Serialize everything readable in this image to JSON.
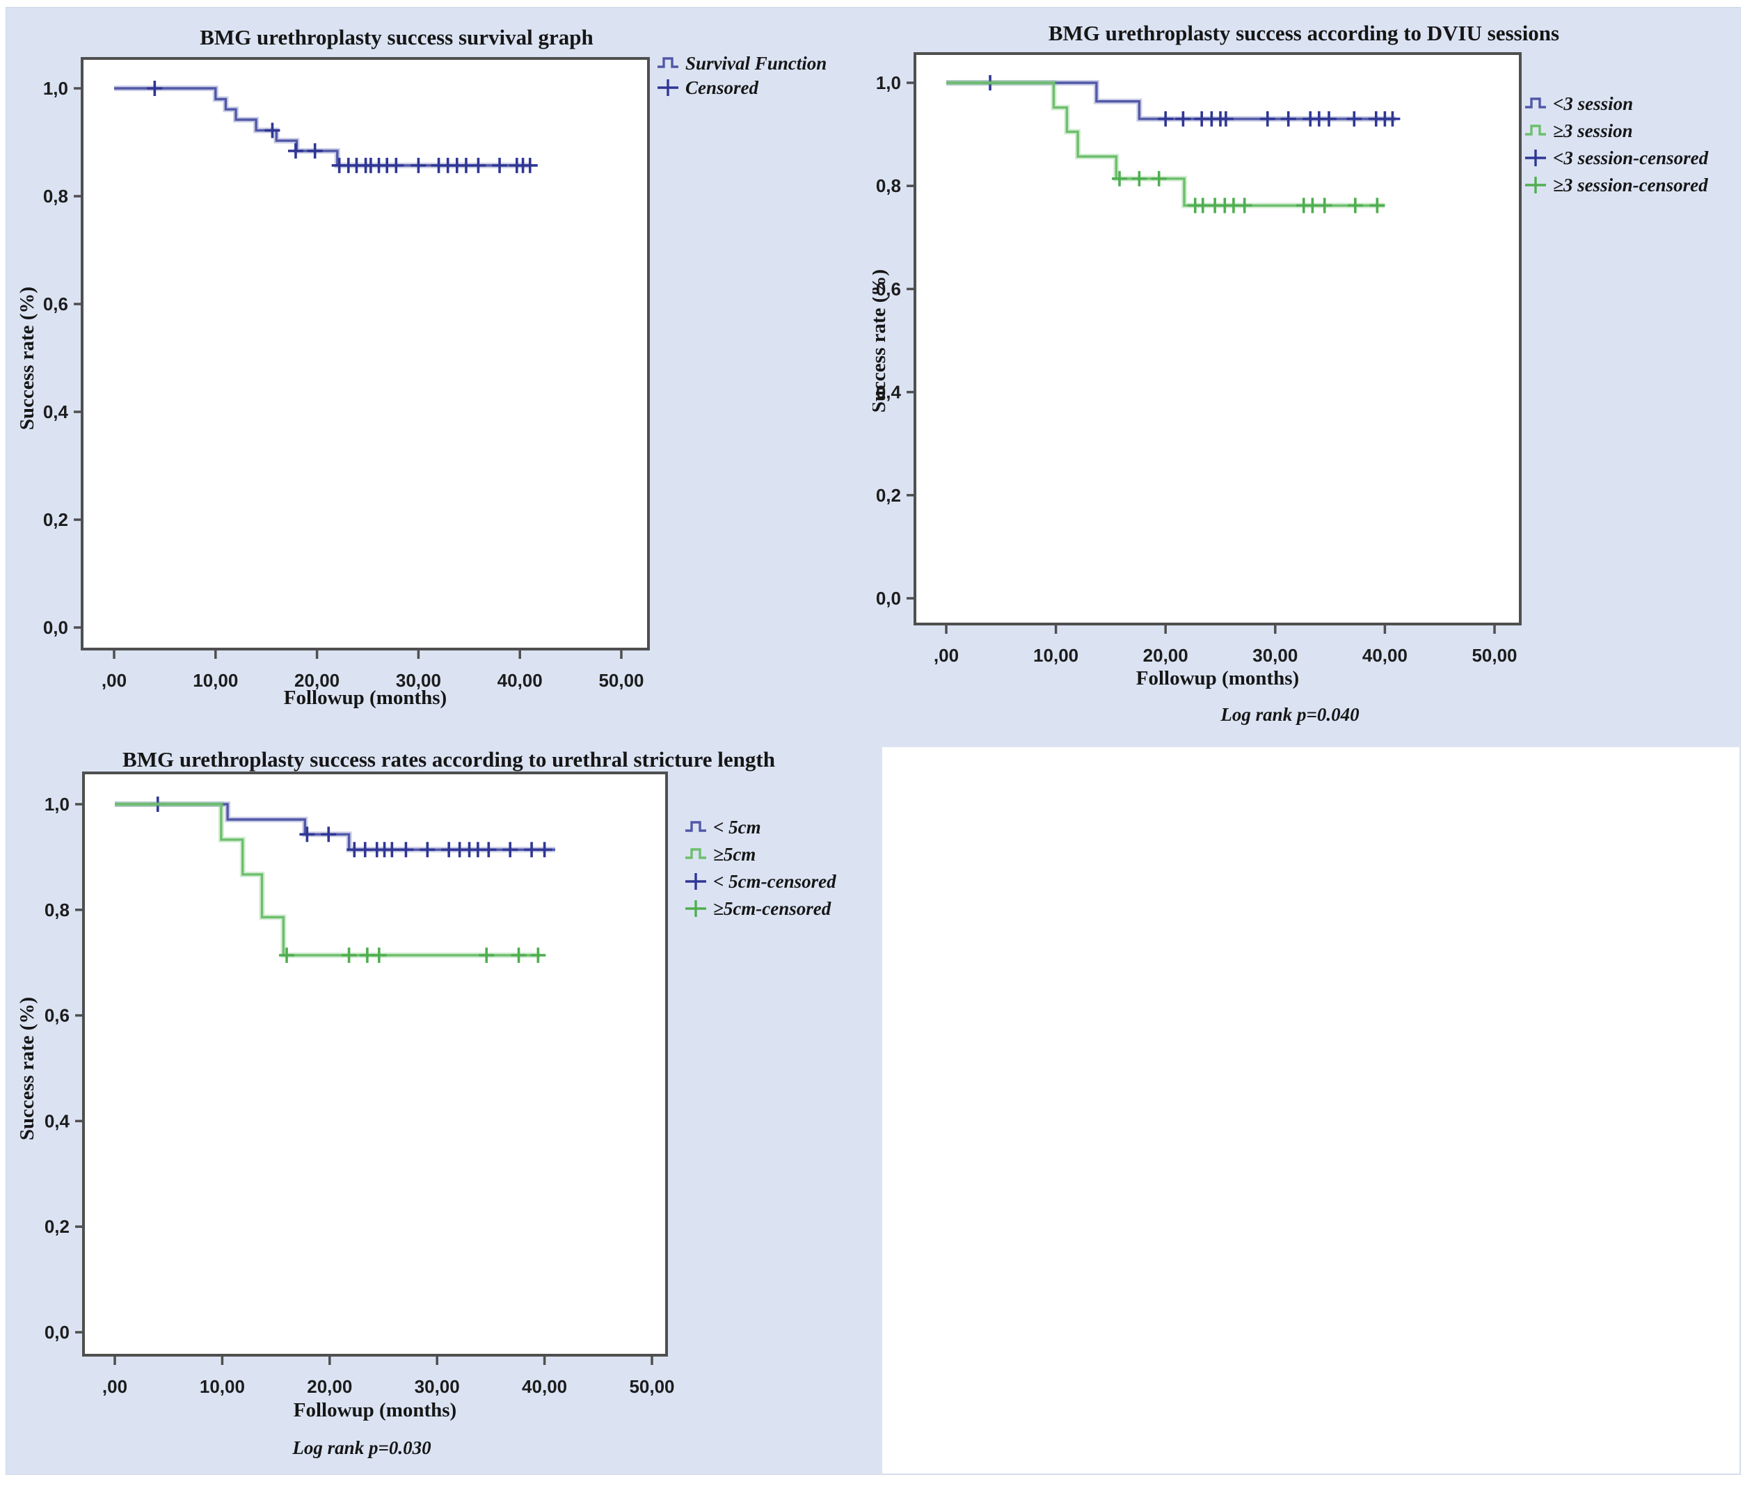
{
  "figure": {
    "background_color": "#dbe3f3",
    "plot_area_color": "#ffffff",
    "frame_color": "#4f4f4f",
    "blue_series_color": "#5158a8",
    "blue_censor_color": "#2f3694",
    "green_series_color": "#6cbf6c",
    "green_censor_color": "#4fae50"
  },
  "chart_data": [
    {
      "type": "line",
      "step": true,
      "title": "BMG urethroplasty success survival graph",
      "xlabel": "Followup (months)",
      "ylabel": "Success rate (%)",
      "x_tick_labels": [
        ",00",
        "10,00",
        "20,00",
        "30,00",
        "40,00",
        "50,00"
      ],
      "x_tick_values": [
        0,
        10,
        20,
        30,
        40,
        50
      ],
      "y_tick_labels": [
        "0,0",
        "0,2",
        "0,4",
        "0,6",
        "0,8",
        "1,0"
      ],
      "y_tick_values": [
        0,
        0.2,
        0.4,
        0.6,
        0.8,
        1.0
      ],
      "xlim": [
        0,
        50
      ],
      "ylim": [
        0,
        1
      ],
      "legend_position": "top-right",
      "footer": "",
      "series": [
        {
          "name": "Survival Function",
          "color": "#5158a8",
          "censor_color": "#2f3694",
          "steps": [
            [
              0,
              1
            ],
            [
              10,
              1
            ],
            [
              10,
              0.98
            ],
            [
              11,
              0.98
            ],
            [
              11,
              0.961
            ],
            [
              12,
              0.961
            ],
            [
              12,
              0.942
            ],
            [
              14,
              0.942
            ],
            [
              14,
              0.922
            ],
            [
              16,
              0.922
            ],
            [
              16,
              0.903
            ],
            [
              18,
              0.903
            ],
            [
              18,
              0.884
            ],
            [
              22,
              0.884
            ],
            [
              22,
              0.857
            ],
            [
              41,
              0.857
            ]
          ],
          "censored": [
            [
              4,
              1
            ],
            [
              15.6,
              0.922
            ],
            [
              17.9,
              0.884
            ],
            [
              19.8,
              0.884
            ],
            [
              22.2,
              0.857
            ],
            [
              23.1,
              0.857
            ],
            [
              23.9,
              0.857
            ],
            [
              24.8,
              0.857
            ],
            [
              25.3,
              0.857
            ],
            [
              26.1,
              0.857
            ],
            [
              26.9,
              0.857
            ],
            [
              27.8,
              0.857
            ],
            [
              30,
              0.857
            ],
            [
              32,
              0.857
            ],
            [
              32.9,
              0.857
            ],
            [
              33.8,
              0.857
            ],
            [
              34.7,
              0.857
            ],
            [
              35.9,
              0.857
            ],
            [
              38,
              0.857
            ],
            [
              39.7,
              0.857
            ],
            [
              40.3,
              0.857
            ],
            [
              41,
              0.857
            ]
          ]
        }
      ],
      "legend": [
        {
          "label": "Survival Function",
          "marker": "step",
          "color": "#5158a8"
        },
        {
          "label": "Censored",
          "marker": "censor",
          "color": "#2f3694"
        }
      ]
    },
    {
      "type": "line",
      "step": true,
      "title": "BMG urethroplasty success according to DVIU sessions",
      "xlabel": "Followup (months)",
      "ylabel": "Success rate (%)",
      "x_tick_labels": [
        ",00",
        "10,00",
        "20,00",
        "30,00",
        "40,00",
        "50,00"
      ],
      "x_tick_values": [
        0,
        10,
        20,
        30,
        40,
        50
      ],
      "y_tick_labels": [
        "0,0",
        "0,2",
        "0,4",
        "0,6",
        "0,8",
        "1,0"
      ],
      "y_tick_values": [
        0,
        0.2,
        0.4,
        0.6,
        0.8,
        1.0
      ],
      "xlim": [
        0,
        50
      ],
      "ylim": [
        0,
        1
      ],
      "legend_position": "right",
      "footer": "Log rank p=0.040",
      "series": [
        {
          "name": "<3 session",
          "color": "#5158a8",
          "censor_color": "#2f3694",
          "steps": [
            [
              0,
              1
            ],
            [
              13.7,
              1
            ],
            [
              13.7,
              0.964
            ],
            [
              17.6,
              0.964
            ],
            [
              17.6,
              0.93
            ],
            [
              41,
              0.93
            ]
          ],
          "censored": [
            [
              4,
              1
            ],
            [
              20,
              0.93
            ],
            [
              21.6,
              0.93
            ],
            [
              23.3,
              0.93
            ],
            [
              24.2,
              0.93
            ],
            [
              25,
              0.93
            ],
            [
              25.5,
              0.93
            ],
            [
              29.3,
              0.93
            ],
            [
              31.2,
              0.93
            ],
            [
              33.2,
              0.93
            ],
            [
              34,
              0.93
            ],
            [
              34.9,
              0.93
            ],
            [
              37.2,
              0.93
            ],
            [
              39.2,
              0.93
            ],
            [
              40,
              0.93
            ],
            [
              40.7,
              0.93
            ]
          ]
        },
        {
          "name": "≥3 session",
          "color": "#6cbf6c",
          "censor_color": "#4fae50",
          "steps": [
            [
              0,
              1
            ],
            [
              9.8,
              1
            ],
            [
              9.8,
              0.952
            ],
            [
              11,
              0.952
            ],
            [
              11,
              0.905
            ],
            [
              12,
              0.905
            ],
            [
              12,
              0.857
            ],
            [
              15.5,
              0.857
            ],
            [
              15.5,
              0.814
            ],
            [
              21.7,
              0.814
            ],
            [
              21.7,
              0.762
            ],
            [
              40,
              0.762
            ]
          ],
          "censored": [
            [
              15.8,
              0.814
            ],
            [
              17.6,
              0.814
            ],
            [
              19.4,
              0.814
            ],
            [
              22.7,
              0.762
            ],
            [
              23.4,
              0.762
            ],
            [
              24.5,
              0.762
            ],
            [
              25.4,
              0.762
            ],
            [
              26.2,
              0.762
            ],
            [
              27.2,
              0.762
            ],
            [
              32.6,
              0.762
            ],
            [
              33.4,
              0.762
            ],
            [
              34.5,
              0.762
            ],
            [
              37.3,
              0.762
            ],
            [
              39.3,
              0.762
            ]
          ]
        }
      ],
      "legend": [
        {
          "label": "<3 session",
          "marker": "step",
          "color": "#5158a8"
        },
        {
          "label": "≥3 session",
          "marker": "step",
          "color": "#6cbf6c"
        },
        {
          "label": "<3 session-censored",
          "marker": "censor",
          "color": "#2f3694"
        },
        {
          "label": "≥3 session-censored",
          "marker": "censor",
          "color": "#4fae50"
        }
      ]
    },
    {
      "type": "line",
      "step": true,
      "title": "BMG urethroplasty success rates according to urethral stricture length",
      "xlabel": "Followup (months)",
      "ylabel": "Success rate (%)",
      "x_tick_labels": [
        ",00",
        "10,00",
        "20,00",
        "30,00",
        "40,00",
        "50,00"
      ],
      "x_tick_values": [
        0,
        10,
        20,
        30,
        40,
        50
      ],
      "y_tick_labels": [
        "0,0",
        "0,2",
        "0,4",
        "0,6",
        "0,8",
        "1,0"
      ],
      "y_tick_values": [
        0,
        0.2,
        0.4,
        0.6,
        0.8,
        1.0
      ],
      "xlim": [
        0,
        50
      ],
      "ylim": [
        0,
        1
      ],
      "legend_position": "right",
      "footer": "Log rank p=0.030",
      "series": [
        {
          "name": "< 5cm",
          "color": "#5158a8",
          "censor_color": "#2f3694",
          "steps": [
            [
              0,
              1
            ],
            [
              10.5,
              1
            ],
            [
              10.5,
              0.971
            ],
            [
              17.7,
              0.971
            ],
            [
              17.7,
              0.943
            ],
            [
              21.8,
              0.943
            ],
            [
              21.8,
              0.914
            ],
            [
              41,
              0.914
            ]
          ],
          "censored": [
            [
              4,
              1
            ],
            [
              17.9,
              0.943
            ],
            [
              19.9,
              0.943
            ],
            [
              22.3,
              0.914
            ],
            [
              23.3,
              0.914
            ],
            [
              24.4,
              0.914
            ],
            [
              25.1,
              0.914
            ],
            [
              25.8,
              0.914
            ],
            [
              27.1,
              0.914
            ],
            [
              29.1,
              0.914
            ],
            [
              31.1,
              0.914
            ],
            [
              32.1,
              0.914
            ],
            [
              33,
              0.914
            ],
            [
              33.8,
              0.914
            ],
            [
              34.8,
              0.914
            ],
            [
              36.8,
              0.914
            ],
            [
              38.8,
              0.914
            ],
            [
              40,
              0.914
            ]
          ]
        },
        {
          "name": "≥5cm",
          "color": "#6cbf6c",
          "censor_color": "#4fae50",
          "steps": [
            [
              0,
              1
            ],
            [
              9.9,
              1
            ],
            [
              9.9,
              0.933
            ],
            [
              11.9,
              0.933
            ],
            [
              11.9,
              0.867
            ],
            [
              13.7,
              0.867
            ],
            [
              13.7,
              0.786
            ],
            [
              15.7,
              0.786
            ],
            [
              15.7,
              0.714
            ],
            [
              39.6,
              0.714
            ]
          ],
          "censored": [
            [
              16,
              0.714
            ],
            [
              21.8,
              0.714
            ],
            [
              23.5,
              0.714
            ],
            [
              24.6,
              0.714
            ],
            [
              34.6,
              0.714
            ],
            [
              37.6,
              0.714
            ],
            [
              39.4,
              0.714
            ]
          ]
        }
      ],
      "legend": [
        {
          "label": "< 5cm",
          "marker": "step",
          "color": "#5158a8"
        },
        {
          "label": "≥5cm",
          "marker": "step",
          "color": "#6cbf6c"
        },
        {
          "label": "< 5cm-censored",
          "marker": "censor",
          "color": "#2f3694"
        },
        {
          "label": "≥5cm-censored",
          "marker": "censor",
          "color": "#4fae50"
        }
      ]
    }
  ]
}
